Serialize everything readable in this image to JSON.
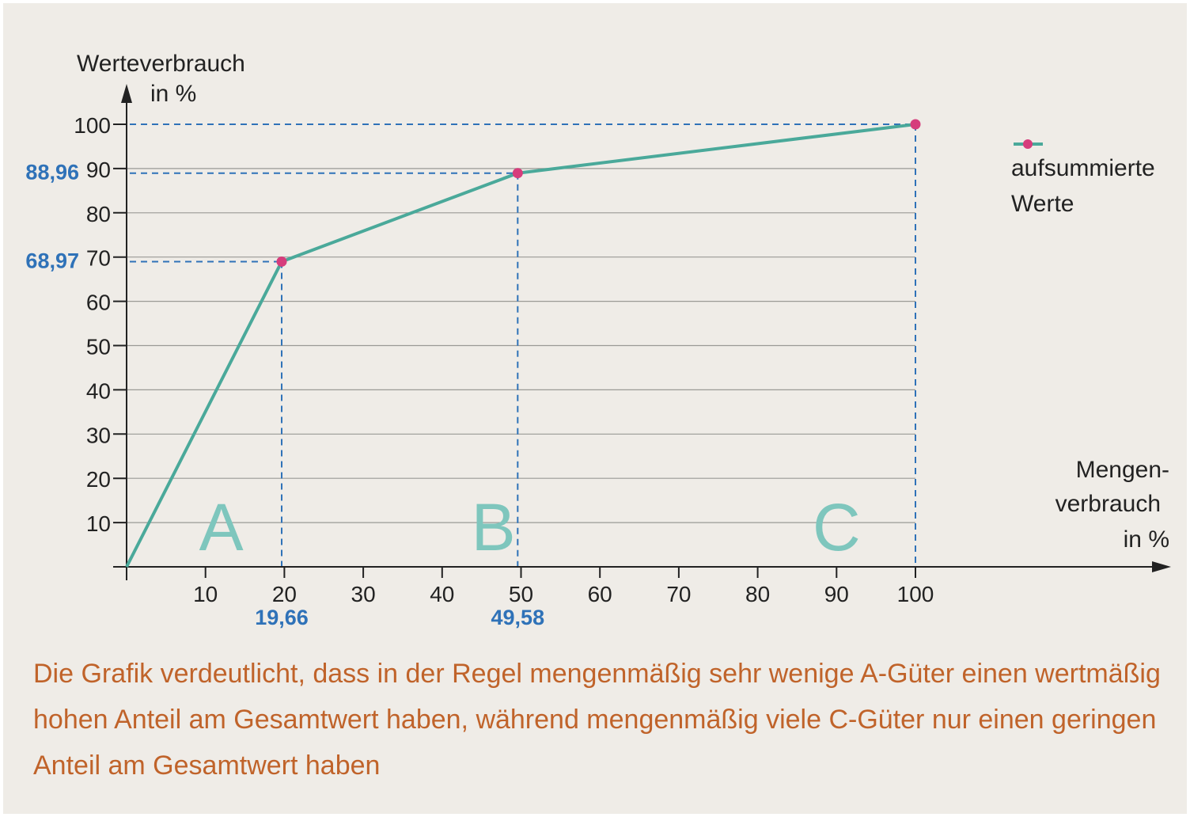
{
  "chart_data": {
    "type": "line",
    "ylabel_line1": "Werteverbrauch",
    "ylabel_line2": "in %",
    "xlabel_line1": "Mengen-",
    "xlabel_line2": "verbrauch",
    "xlabel_line3": "in %",
    "x_ticks": [
      10,
      20,
      30,
      40,
      50,
      60,
      70,
      80,
      90,
      100
    ],
    "y_ticks": [
      10,
      20,
      30,
      40,
      50,
      60,
      70,
      80,
      90,
      100
    ],
    "xlim": [
      0,
      128
    ],
    "ylim": [
      0,
      100
    ],
    "grid": "horizontal",
    "series": [
      {
        "name": "aufsummierte Werte",
        "color": "#4aa99a",
        "marker_color": "#d63d7c",
        "x": [
          0,
          19.66,
          49.58,
          100
        ],
        "y": [
          0,
          68.97,
          88.96,
          100
        ],
        "markers": [
          false,
          true,
          true,
          true
        ]
      }
    ],
    "guide_color": "#2f72b8",
    "highlight_x": [
      "19,66",
      "49,58"
    ],
    "highlight_y": [
      "68,97",
      "88,96"
    ],
    "zones": [
      {
        "label": "A",
        "x": 12
      },
      {
        "label": "B",
        "x": 46.5
      },
      {
        "label": "C",
        "x": 90
      }
    ],
    "zone_color": "#7ec6bd",
    "legend_position": "top-right",
    "legend_line1": "aufsummierte",
    "legend_line2": "Werte"
  },
  "caption": "Die Grafik verdeutlicht, dass in der Regel mengenmäßig sehr wenige A-Güter einen wertmäßig hohen Anteil am Gesamtwert haben, während mengenmäßig viele C-Güter nur einen geringen Anteil am Gesamtwert haben"
}
